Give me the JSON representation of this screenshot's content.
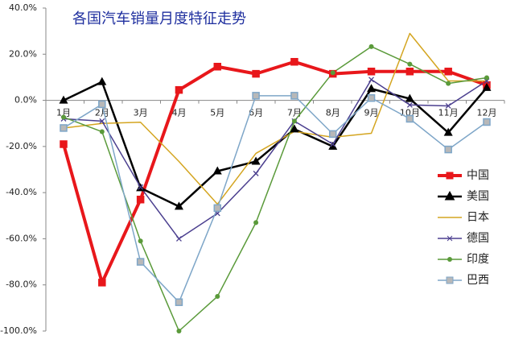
{
  "chart_data": {
    "type": "line",
    "title": "各国汽车销量月度特征走势",
    "categories": [
      "1月",
      "2月",
      "3月",
      "4月",
      "5月",
      "6月",
      "7月",
      "8月",
      "9月",
      "10月",
      "11月",
      "12月"
    ],
    "series": [
      {
        "name": "中国",
        "color": "#e8171b",
        "marker": "square",
        "line_width": 4,
        "values": [
          -19,
          -79,
          -43,
          4.5,
          14.6,
          11.5,
          16.7,
          11.5,
          12.5,
          12.5,
          12.5,
          6.6
        ]
      },
      {
        "name": "美国",
        "color": "#000000",
        "marker": "triangle",
        "line_width": 2.5,
        "values": [
          0,
          8,
          -38,
          -46,
          -30.7,
          -26.5,
          -12.5,
          -20,
          5,
          0.7,
          -14,
          5.5
        ]
      },
      {
        "name": "日本",
        "color": "#d4a520",
        "marker": "none",
        "line_width": 1.5,
        "values": [
          -12,
          -10,
          -9.5,
          -26.5,
          -45,
          -23,
          -13.5,
          -16,
          -14.3,
          29,
          8.4,
          8.4
        ]
      },
      {
        "name": "德国",
        "color": "#4b3f8f",
        "marker": "x",
        "line_width": 1.5,
        "values": [
          -8,
          -9,
          -37.6,
          -60,
          -49,
          -31.7,
          -9,
          -19,
          9,
          -2,
          -2.4,
          8.4
        ]
      },
      {
        "name": "印度",
        "color": "#5a9a3a",
        "marker": "circle",
        "line_width": 1.5,
        "values": [
          -7.3,
          -13.6,
          -61,
          -100,
          -85,
          -53,
          -9,
          12,
          23.3,
          15.7,
          7.3,
          9.8
        ]
      },
      {
        "name": "巴西",
        "color": "#7ea6c8",
        "marker": "square",
        "line_width": 1.5,
        "values": [
          -12,
          -1.7,
          -70,
          -87.5,
          -46.7,
          2,
          2,
          -14.6,
          1,
          -8,
          -21.3,
          -9.4
        ]
      }
    ],
    "ylim": [
      -100,
      40
    ],
    "yticks": [
      {
        "value": -100,
        "label": "-100.0%"
      },
      {
        "value": -80,
        "label": "-80.0%"
      },
      {
        "value": -60,
        "label": "-60.0%"
      },
      {
        "value": -40,
        "label": "-40.0%"
      },
      {
        "value": -20,
        "label": "-20.0%"
      },
      {
        "value": 0,
        "label": "0.0%"
      },
      {
        "value": 20,
        "label": "20.0%"
      },
      {
        "value": 40,
        "label": "40.0%"
      }
    ],
    "grid": false,
    "legend": "right"
  }
}
